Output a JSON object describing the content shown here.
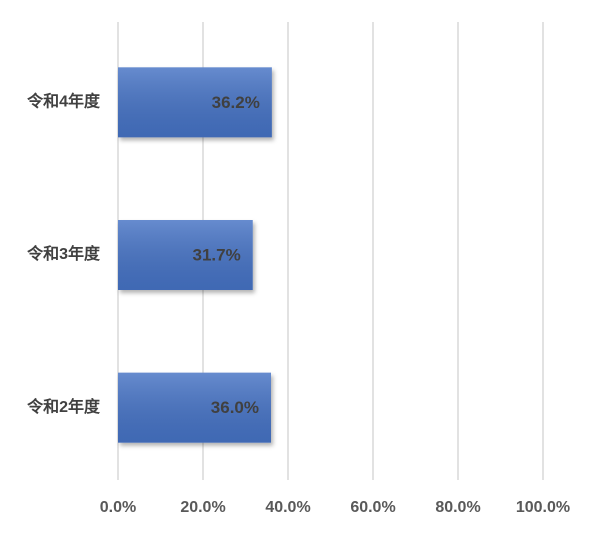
{
  "chart_data": {
    "type": "bar",
    "orientation": "horizontal",
    "categories": [
      "令和4年度",
      "令和3年度",
      "令和2年度"
    ],
    "values": [
      36.2,
      31.7,
      36.0
    ],
    "value_labels": [
      "36.2%",
      "31.7%",
      "36.0%"
    ],
    "color": "#4472c4",
    "xlim": [
      0,
      100
    ],
    "xticks": [
      {
        "value": 0,
        "label": "0.0%"
      },
      {
        "value": 20,
        "label": "20.0%"
      },
      {
        "value": 40,
        "label": "40.0%"
      },
      {
        "value": 60,
        "label": "60.0%"
      },
      {
        "value": 80,
        "label": "80.0%"
      },
      {
        "value": 100,
        "label": "100.0%"
      }
    ],
    "grid": true
  }
}
